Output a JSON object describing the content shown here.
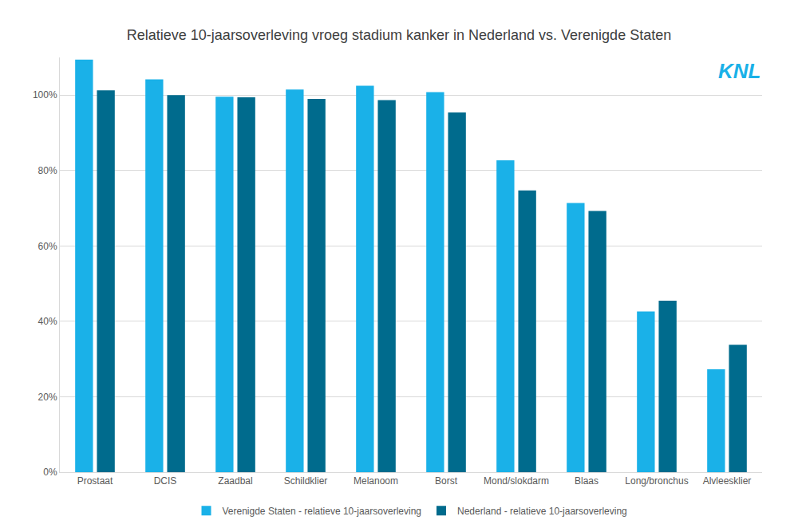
{
  "chart_data": {
    "type": "bar",
    "title": "Relatieve 10-jaarsoverleving vroeg stadium kanker in Nederland vs. Verenigde Staten",
    "annotations": [
      "KNL"
    ],
    "categories": [
      "Prostaat",
      "DCIS",
      "Zaadbal",
      "Schildklier",
      "Melanoom",
      "Borst",
      "Mond/slokdarm",
      "Blaas",
      "Long/bronchus",
      "Alvleesklier"
    ],
    "series": [
      {
        "name": "Verenigde Staten - relatieve 10-jaarsoverleving",
        "color": "#1ab1e8",
        "values": [
          109.4,
          104.2,
          99.6,
          101.5,
          102.5,
          100.8,
          82.7,
          71.4,
          42.6,
          27.3
        ]
      },
      {
        "name": "Nederland - relatieve 10-jaarsoverleving",
        "color": "#006b8d",
        "values": [
          101.3,
          100.0,
          99.4,
          99.0,
          98.7,
          95.4,
          74.7,
          69.3,
          45.5,
          33.8
        ]
      }
    ],
    "ylim": [
      0,
      110
    ],
    "yticks": [
      {
        "value": 0,
        "label": "0%"
      },
      {
        "value": 20,
        "label": "20%"
      },
      {
        "value": 40,
        "label": "40%"
      },
      {
        "value": 60,
        "label": "60%"
      },
      {
        "value": 80,
        "label": "80%"
      },
      {
        "value": 100,
        "label": "100%"
      }
    ],
    "grid": true,
    "legend": "bottom"
  }
}
